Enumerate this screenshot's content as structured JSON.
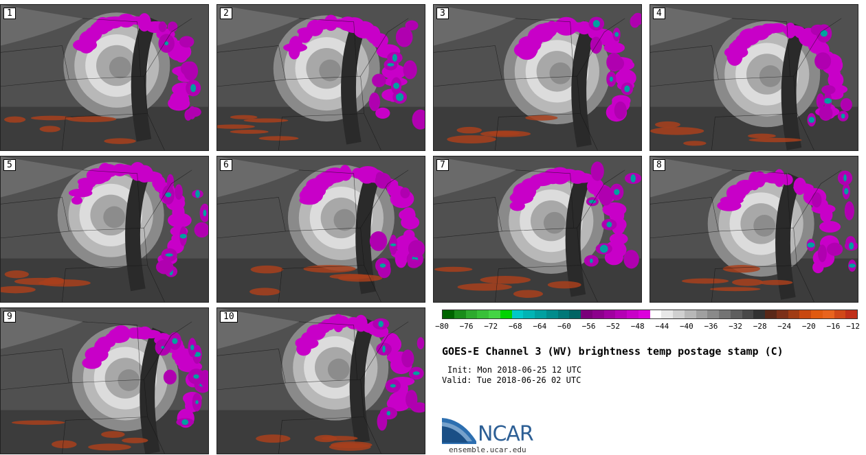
{
  "panels": [
    {
      "id": "1"
    },
    {
      "id": "2"
    },
    {
      "id": "3"
    },
    {
      "id": "4"
    },
    {
      "id": "5"
    },
    {
      "id": "6"
    },
    {
      "id": "7"
    },
    {
      "id": "8"
    },
    {
      "id": "9"
    },
    {
      "id": "10"
    }
  ],
  "colorbar": {
    "colors": [
      "#006400",
      "#1a8c1a",
      "#2eaa2e",
      "#38c038",
      "#44d444",
      "#00d200",
      "#00c8c8",
      "#00b4b4",
      "#00a0a0",
      "#008c8c",
      "#007878",
      "#006464",
      "#7a007a",
      "#8c008c",
      "#a000a0",
      "#b400b4",
      "#c800c8",
      "#dc00dc",
      "#ffffff",
      "#e8e8e8",
      "#d0d0d0",
      "#b8b8b8",
      "#a0a0a0",
      "#8a8a8a",
      "#747474",
      "#5e5e5e",
      "#484848",
      "#323232",
      "#5a2818",
      "#7c3018",
      "#a03c14",
      "#c84810",
      "#e05a10",
      "#e8641e",
      "#d04818",
      "#c0301a"
    ],
    "ticks": [
      "−80",
      "−76",
      "−72",
      "−68",
      "−64",
      "−60",
      "−56",
      "−52",
      "−48",
      "−44",
      "−40",
      "−36",
      "−32",
      "−28",
      "−24",
      "−20",
      "−16",
      "−12"
    ]
  },
  "title": "GOES-E Channel 3 (WV) brightness temp postage stamp (C)",
  "init": "Init: Mon 2018-06-25 12 UTC",
  "valid": "Valid: Tue 2018-06-26 02 UTC",
  "logo": {
    "text": "NCAR",
    "site": "ensemble.ucar.edu"
  }
}
